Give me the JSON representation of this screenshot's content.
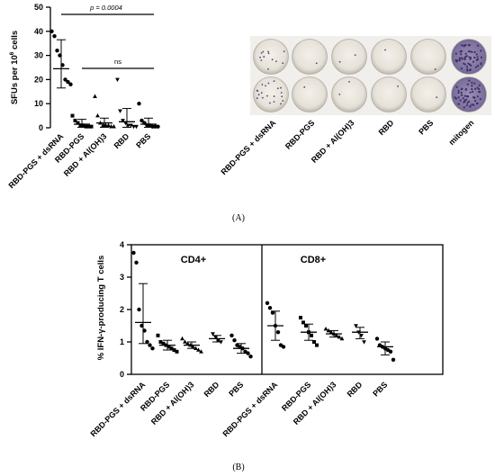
{
  "panel_a": {
    "caption": "(A)",
    "ylabel": "SFUs per 10",
    "ylabel_sup": "6",
    "ylabel_tail": " cells",
    "p_label": "p = 0.0004",
    "ns_label": "ns",
    "well_labels": [
      "RBD-PGS + dsRNA",
      "RBD-PGS",
      "RBD + Al(OH)3",
      "RBD",
      "PBS",
      "mitogen"
    ]
  },
  "panel_b": {
    "caption": "(B)",
    "ylabel": "% IFN-γ-producing T cells"
  },
  "chart_data": [
    {
      "type": "scatter",
      "title": "",
      "ylabel": "SFUs per 10^6 cells",
      "ylim": [
        0,
        50
      ],
      "yticks": [
        0,
        10,
        20,
        30,
        40,
        50
      ],
      "categories": [
        "RBD-PGS + dsRNA",
        "RBD-PGS",
        "RBD + Al(OH)3",
        "RBD",
        "PBS"
      ],
      "points": [
        [
          40,
          38,
          32,
          30,
          26,
          20,
          19,
          18
        ],
        [
          5,
          3,
          2,
          1,
          1,
          0.5,
          0.5,
          0.5
        ],
        [
          13,
          5,
          2,
          1,
          1,
          1,
          0.5,
          0.5
        ],
        [
          20,
          7,
          3,
          2,
          1,
          1,
          0.5,
          0.5
        ],
        [
          10,
          3,
          2,
          1,
          1,
          0.5,
          0.5,
          0.5
        ]
      ],
      "mean": [
        24.5,
        1.5,
        2.0,
        2.5,
        1.5
      ],
      "error": [
        [
          16.5,
          36.5
        ],
        [
          0.2,
          3.5
        ],
        [
          0.2,
          4
        ],
        [
          0.2,
          8
        ],
        [
          0.2,
          4
        ]
      ],
      "annotations": [
        {
          "text": "p = 0.0004",
          "from": "RBD-PGS + dsRNA",
          "to": "PBS",
          "y": 46
        },
        {
          "text": "ns",
          "from": "RBD-PGS",
          "to": "PBS",
          "y": 33
        }
      ]
    },
    {
      "type": "scatter",
      "title": "",
      "ylabel": "% IFN-γ-producing T cells",
      "ylim": [
        0,
        4
      ],
      "yticks": [
        0,
        1,
        2,
        3,
        4
      ],
      "panels": [
        {
          "name": "CD4+",
          "categories": [
            "RBD-PGS + dsRNA",
            "RBD-PGS",
            "RBD + Al(OH)3",
            "RBD",
            "PBS"
          ],
          "points": [
            [
              3.75,
              3.45,
              2.0,
              1.5,
              1.35,
              1.0,
              0.9,
              0.8
            ],
            [
              1.2,
              1.0,
              0.95,
              0.9,
              0.85,
              0.8,
              0.75,
              0.7
            ],
            [
              1.1,
              1.0,
              0.95,
              0.9,
              0.85,
              0.8,
              0.75,
              0.7
            ],
            [
              1.25,
              1.15,
              1.05,
              1.0
            ],
            [
              1.2,
              1.05,
              0.9,
              0.85,
              0.8,
              0.7,
              0.65,
              0.55
            ]
          ],
          "mean": [
            1.6,
            0.9,
            0.9,
            1.1,
            0.8
          ],
          "error": [
            [
              0.95,
              2.8
            ],
            [
              0.75,
              1.05
            ],
            [
              0.8,
              1.0
            ],
            [
              1.0,
              1.2
            ],
            [
              0.65,
              0.95
            ]
          ]
        },
        {
          "name": "CD8+",
          "categories": [
            "RBD-PGS + dsRNA",
            "RBD-PGS",
            "RBD + Al(OH)3",
            "RBD",
            "PBS"
          ],
          "points": [
            [
              2.2,
              2.05,
              1.9,
              1.5,
              1.3,
              0.9,
              0.85
            ],
            [
              1.75,
              1.6,
              1.5,
              1.3,
              1.2,
              1.0,
              0.9
            ],
            [
              1.4,
              1.35,
              1.3,
              1.25,
              1.2,
              1.15,
              1.1
            ],
            [
              1.5,
              1.3,
              1.2,
              1.0
            ],
            [
              1.1,
              0.9,
              0.85,
              0.8,
              0.75,
              0.7,
              0.45
            ]
          ],
          "mean": [
            1.5,
            1.3,
            1.25,
            1.3,
            0.85
          ],
          "error": [
            [
              1.05,
              1.95
            ],
            [
              1.05,
              1.55
            ],
            [
              1.15,
              1.35
            ],
            [
              1.1,
              1.45
            ],
            [
              0.6,
              1.0
            ]
          ]
        }
      ]
    }
  ]
}
